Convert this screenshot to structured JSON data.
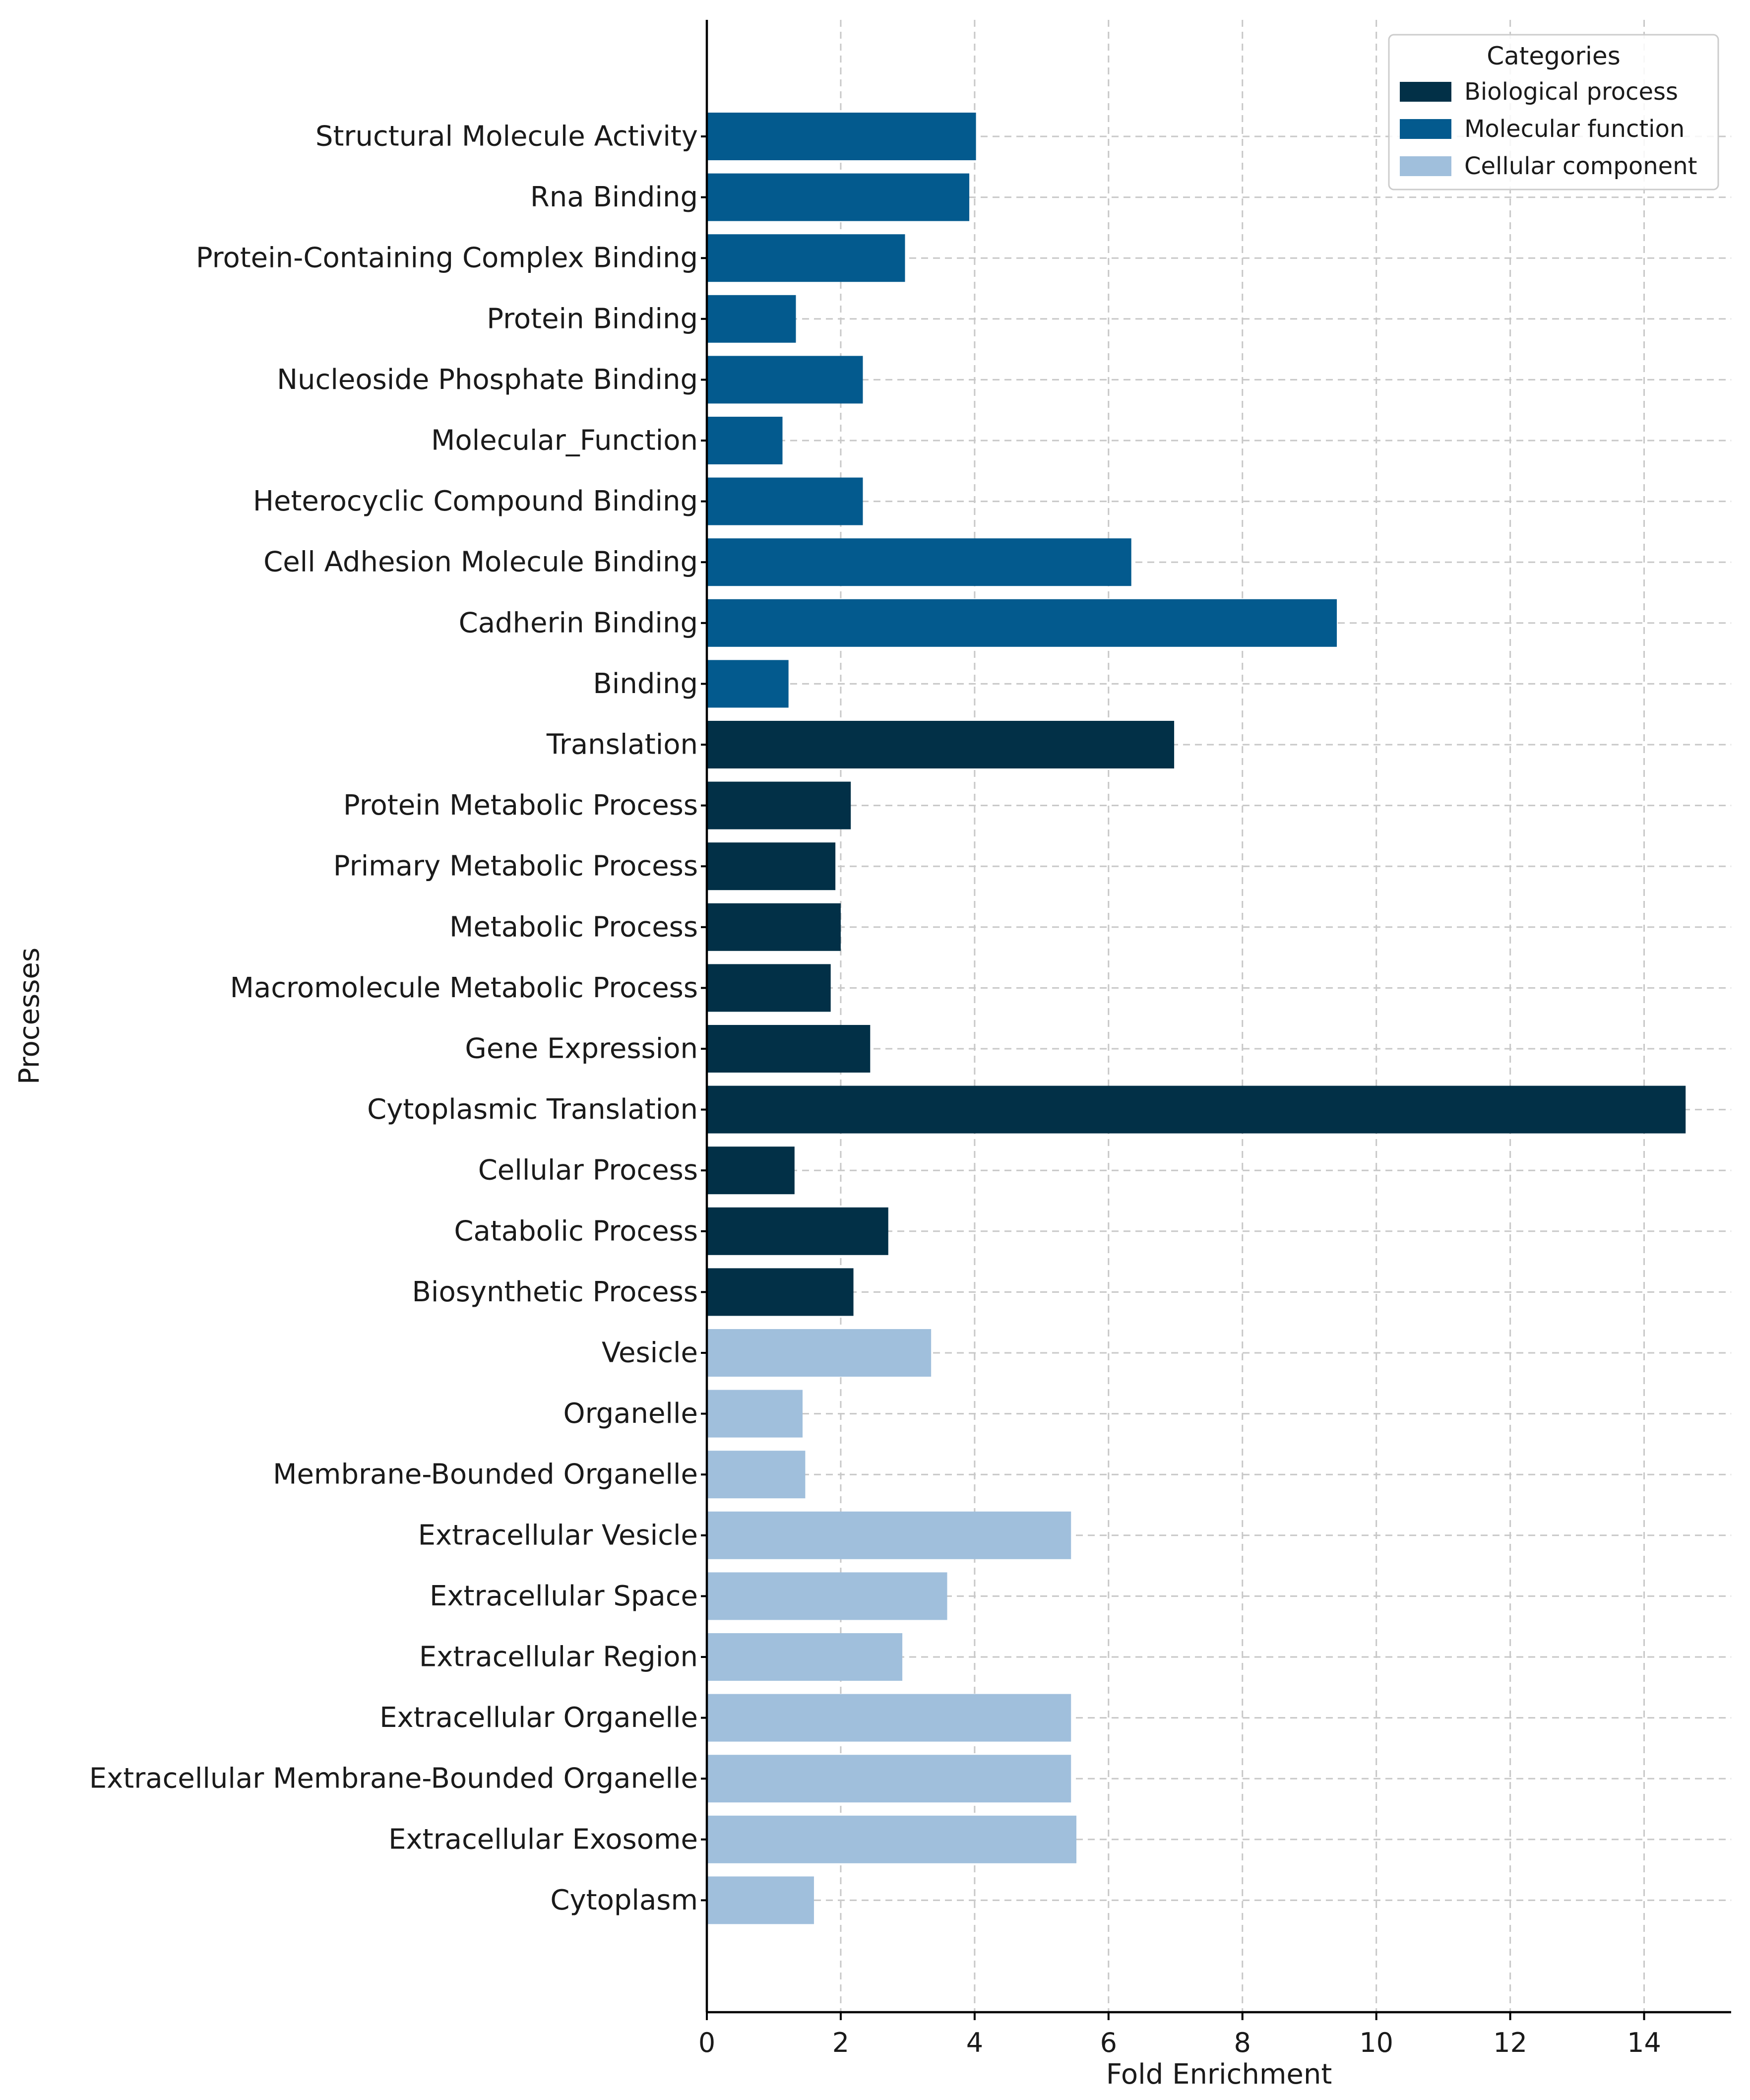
{
  "chart_data": {
    "type": "bar",
    "orientation": "horizontal",
    "xlabel": "Fold Enrichment",
    "ylabel": "Processes",
    "xlim": [
      0,
      15.3
    ],
    "xticks": [
      0,
      2,
      4,
      6,
      8,
      10,
      12,
      14
    ],
    "xtick_labels": [
      "0",
      "2",
      "4",
      "6",
      "8",
      "10",
      "12",
      "14"
    ],
    "grid": true,
    "legend": {
      "title": "Categories",
      "position": "top-right",
      "entries": [
        {
          "name": "Biological process",
          "color": "#023047"
        },
        {
          "name": "Molecular function",
          "color": "#035a8e"
        },
        {
          "name": "Cellular component",
          "color": "#a0bfdc"
        }
      ]
    },
    "categories": [
      {
        "label": "Structural Molecule Activity",
        "value": 4.02,
        "category": "Molecular function"
      },
      {
        "label": "Rna Binding",
        "value": 3.92,
        "category": "Molecular function"
      },
      {
        "label": "Protein-Containing Complex Binding",
        "value": 2.96,
        "category": "Molecular function"
      },
      {
        "label": "Protein Binding",
        "value": 1.33,
        "category": "Molecular function"
      },
      {
        "label": "Nucleoside Phosphate Binding",
        "value": 2.33,
        "category": "Molecular function"
      },
      {
        "label": "Molecular_Function",
        "value": 1.13,
        "category": "Molecular function"
      },
      {
        "label": "Heterocyclic Compound Binding",
        "value": 2.33,
        "category": "Molecular function"
      },
      {
        "label": "Cell Adhesion Molecule Binding",
        "value": 6.34,
        "category": "Molecular function"
      },
      {
        "label": "Cadherin Binding",
        "value": 9.41,
        "category": "Molecular function"
      },
      {
        "label": "Binding",
        "value": 1.22,
        "category": "Molecular function"
      },
      {
        "label": "Translation",
        "value": 6.98,
        "category": "Biological process"
      },
      {
        "label": "Protein Metabolic Process",
        "value": 2.15,
        "category": "Biological process"
      },
      {
        "label": "Primary Metabolic Process",
        "value": 1.92,
        "category": "Biological process"
      },
      {
        "label": "Metabolic Process",
        "value": 2.0,
        "category": "Biological process"
      },
      {
        "label": "Macromolecule Metabolic Process",
        "value": 1.85,
        "category": "Biological process"
      },
      {
        "label": "Gene Expression",
        "value": 2.44,
        "category": "Biological process"
      },
      {
        "label": "Cytoplasmic Translation",
        "value": 14.62,
        "category": "Biological process"
      },
      {
        "label": "Cellular Process",
        "value": 1.31,
        "category": "Biological process"
      },
      {
        "label": "Catabolic Process",
        "value": 2.71,
        "category": "Biological process"
      },
      {
        "label": "Biosynthetic Process",
        "value": 2.19,
        "category": "Biological process"
      },
      {
        "label": "Vesicle",
        "value": 3.35,
        "category": "Cellular component"
      },
      {
        "label": "Organelle",
        "value": 1.43,
        "category": "Cellular component"
      },
      {
        "label": "Membrane-Bounded Organelle",
        "value": 1.47,
        "category": "Cellular component"
      },
      {
        "label": "Extracellular Vesicle",
        "value": 5.44,
        "category": "Cellular component"
      },
      {
        "label": "Extracellular Space",
        "value": 3.59,
        "category": "Cellular component"
      },
      {
        "label": "Extracellular Region",
        "value": 2.92,
        "category": "Cellular component"
      },
      {
        "label": "Extracellular Organelle",
        "value": 5.44,
        "category": "Cellular component"
      },
      {
        "label": "Extracellular Membrane-Bounded Organelle",
        "value": 5.44,
        "category": "Cellular component"
      },
      {
        "label": "Extracellular Exosome",
        "value": 5.52,
        "category": "Cellular component"
      },
      {
        "label": "Cytoplasm",
        "value": 1.6,
        "category": "Cellular component"
      }
    ]
  }
}
